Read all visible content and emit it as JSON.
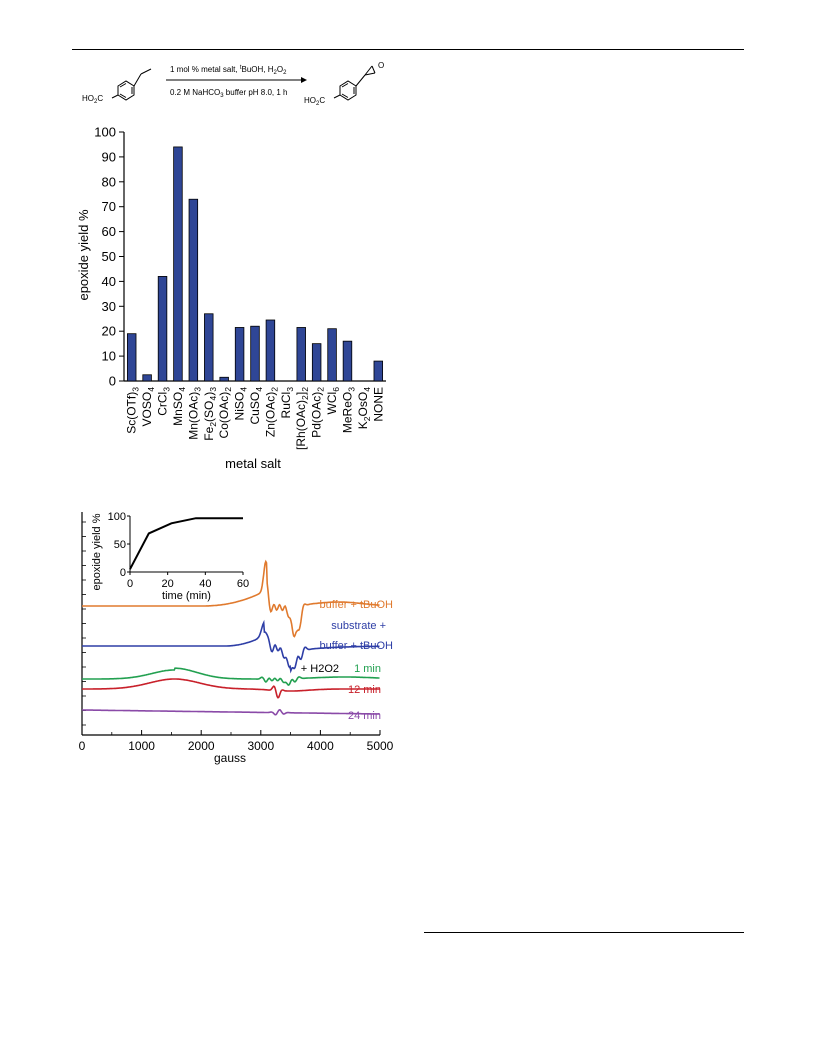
{
  "scheme": {
    "reactant_label": "HO2C",
    "product_label": "HO2C",
    "conditions_above": "1 mol % metal salt, tBuOH, H2O2",
    "conditions_below": "0.2 M NaHCO3 buffer pH 8.0, 1 h"
  },
  "chart_data": [
    {
      "type": "bar",
      "title": "",
      "xlabel": "metal salt",
      "ylabel": "epoxide yield %",
      "ylim": [
        0,
        100
      ],
      "yticks": [
        0,
        10,
        20,
        30,
        40,
        50,
        60,
        70,
        80,
        90,
        100
      ],
      "categories": [
        "Sc(OTf)3",
        "VOSO4",
        "CrCl3",
        "MnSO4",
        "Mn(OAc)3",
        "Fe2(SO4)3",
        "Co(OAc)2",
        "NiSO4",
        "CuSO4",
        "Zn(OAc)2",
        "RuCl3",
        "[Rh(OAc)2]2",
        "Pd(OAc)2",
        "WCl6",
        "MeReO3",
        "K2OsO4",
        "NONE"
      ],
      "values": [
        19,
        2.5,
        42,
        94,
        73,
        27,
        1.5,
        21.5,
        22,
        24.5,
        0,
        21.5,
        15,
        21,
        16,
        0,
        8
      ],
      "bar_color": "#2f4696"
    },
    {
      "type": "line",
      "title": "",
      "xlabel": "gauss",
      "xlim": [
        0,
        5000
      ],
      "xticks": [
        0,
        1000,
        2000,
        3000,
        4000,
        5000
      ],
      "series": [
        {
          "name": "buffer + tBuOH",
          "color": "#e07a2e"
        },
        {
          "name": "substrate + buffer + tBuOH",
          "color": "#2e3ea6"
        },
        {
          "name": "+ H2O2 1 min",
          "color": "#22a050"
        },
        {
          "name": "12 min",
          "color": "#c8202a"
        },
        {
          "name": "24 min",
          "color": "#8a4aa8"
        }
      ],
      "labels": {
        "buffer": "buffer + tBuOH",
        "substrate_1": "substrate +",
        "substrate_2": "buffer + tBuOH",
        "h2o2_prefix": "+ H2O2",
        "t1": "1 min",
        "t12": "12 min",
        "t24": "24 min"
      },
      "inset": {
        "type": "line",
        "xlabel": "time (min)",
        "ylabel": "epoxide yield %",
        "xlim": [
          0,
          60
        ],
        "ylim": [
          0,
          100
        ],
        "xticks": [
          0,
          20,
          40,
          60
        ],
        "yticks": [
          0,
          50,
          100
        ],
        "x": [
          0,
          10,
          22,
          35,
          60
        ],
        "y": [
          5,
          69,
          87,
          96,
          96
        ]
      }
    }
  ]
}
